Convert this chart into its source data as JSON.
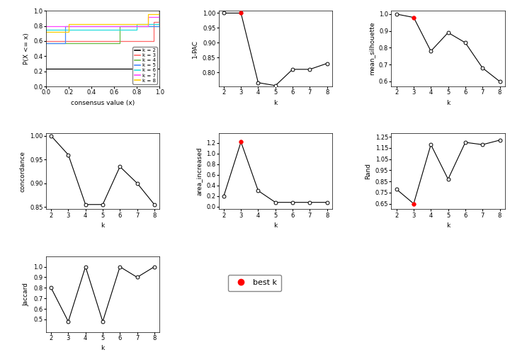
{
  "k_values": [
    2,
    3,
    4,
    5,
    6,
    7,
    8
  ],
  "one_pac": [
    1.0,
    1.0,
    0.765,
    0.755,
    0.81,
    0.81,
    0.83
  ],
  "one_pac_best_k": 3,
  "mean_silhouette": [
    1.0,
    0.98,
    0.78,
    0.89,
    0.83,
    0.68,
    0.6
  ],
  "mean_silhouette_best_k": 3,
  "concordance": [
    1.0,
    0.96,
    0.855,
    0.855,
    0.935,
    0.9,
    0.855
  ],
  "concordance_best_k": null,
  "area_increased": [
    0.2,
    1.22,
    0.3,
    0.08,
    0.08,
    0.08,
    0.08
  ],
  "area_increased_best_k": 3,
  "rand": [
    0.78,
    0.65,
    1.18,
    0.87,
    1.2,
    1.18,
    1.22
  ],
  "rand_best_k": 3,
  "jaccard": [
    0.8,
    0.48,
    1.0,
    0.48,
    1.0,
    0.9,
    1.0
  ],
  "jaccard_best_k": null,
  "ecdf_colors": [
    "#000000",
    "#FF6666",
    "#66BB44",
    "#4488FF",
    "#22DDDD",
    "#FF44FF",
    "#FFCC00"
  ],
  "ecdf_labels": [
    "k = 2",
    "k = 3",
    "k = 4",
    "k = 5",
    "k = 6",
    "k = 7",
    "k = 8"
  ],
  "bg_color": "#FFFFFF",
  "ax_facecolor": "#FFFFFF"
}
